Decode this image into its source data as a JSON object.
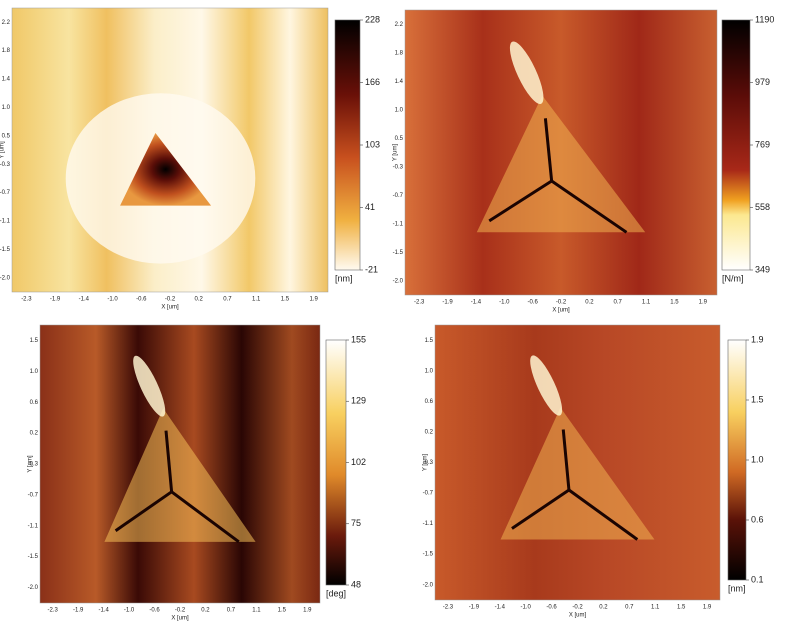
{
  "panels": [
    {
      "y_label": "Y [um]",
      "x_label": "X [um]",
      "y_ticks": [
        "2.2",
        "1.8",
        "1.4",
        "1.0",
        "0.5",
        "-0.3",
        "-0.7",
        "-1.1",
        "-1.5",
        "-2.0"
      ],
      "x_ticks": [
        "-2.3",
        "-1.9",
        "-1.4",
        "-1.0",
        "-0.6",
        "-0.2",
        "0.2",
        "0.7",
        "1.1",
        "1.5",
        "1.9"
      ],
      "colorbar_ticks": [
        "228",
        "166",
        "103",
        "41",
        "-21"
      ],
      "unit": "[nm]"
    },
    {
      "y_label": "Y [um]",
      "x_label": "X [um]",
      "y_ticks": [
        "2.2",
        "1.8",
        "1.4",
        "1.0",
        "0.5",
        "-0.3",
        "-0.7",
        "-1.1",
        "-1.5",
        "-2.0"
      ],
      "x_ticks": [
        "-2.3",
        "-1.9",
        "-1.4",
        "-1.0",
        "-0.6",
        "-0.2",
        "0.2",
        "0.7",
        "1.1",
        "1.5",
        "1.9"
      ],
      "colorbar_ticks": [
        "1190",
        "979",
        "769",
        "558",
        "349"
      ],
      "unit": "[N/m]"
    },
    {
      "y_label": "Y [um]",
      "x_label": "X [um]",
      "y_ticks": [
        "1.5",
        "1.0",
        "0.6",
        "0.2",
        "-0.3",
        "-0.7",
        "-1.1",
        "-1.5",
        "-2.0"
      ],
      "x_ticks": [
        "-2.3",
        "-1.9",
        "-1.4",
        "-1.0",
        "-0.6",
        "-0.2",
        "0.2",
        "0.7",
        "1.1",
        "1.5",
        "1.9"
      ],
      "colorbar_ticks": [
        "155",
        "129",
        "102",
        "75",
        "48"
      ],
      "unit": "[deg]"
    },
    {
      "y_label": "Y [um]",
      "x_label": "X [um]",
      "y_ticks": [
        "1.5",
        "1.0",
        "0.6",
        "0.2",
        "-0.3",
        "-0.7",
        "-1.1",
        "-1.5",
        "-2.0"
      ],
      "x_ticks": [
        "-2.3",
        "-1.9",
        "-1.4",
        "-1.0",
        "-0.6",
        "-0.2",
        "0.2",
        "0.7",
        "1.1",
        "1.5",
        "1.9"
      ],
      "colorbar_ticks": [
        "1.9",
        "1.5",
        "1.0",
        "0.6",
        "0.1"
      ],
      "unit": "[nm]"
    }
  ]
}
